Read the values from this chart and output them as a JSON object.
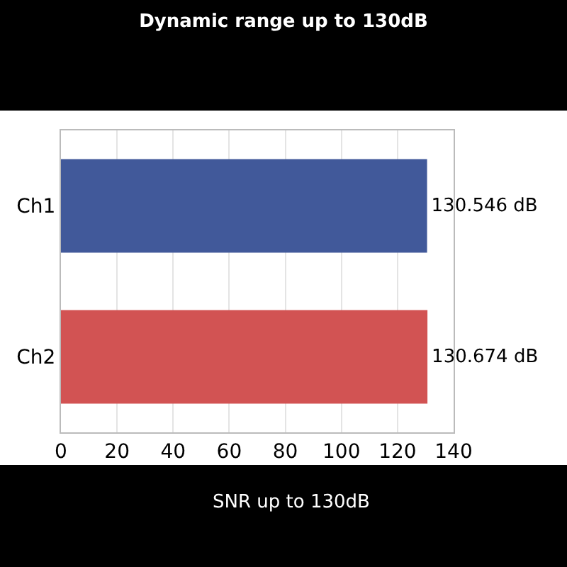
{
  "chart_data": {
    "type": "bar",
    "orientation": "horizontal",
    "title": "Dynamic range up to 130dB",
    "annotations": [
      "SNR up to 130dB"
    ],
    "categories": [
      "Ch1",
      "Ch2"
    ],
    "values": [
      130.546,
      130.674
    ],
    "colors": [
      "#41599a",
      "#d25353"
    ],
    "value_labels": [
      "130.546 dB",
      "130.674 dB"
    ],
    "xlim": [
      0,
      140
    ],
    "xticks": [
      0,
      20,
      40,
      60,
      80,
      100,
      120,
      140
    ],
    "grid": "x",
    "legend": false
  }
}
